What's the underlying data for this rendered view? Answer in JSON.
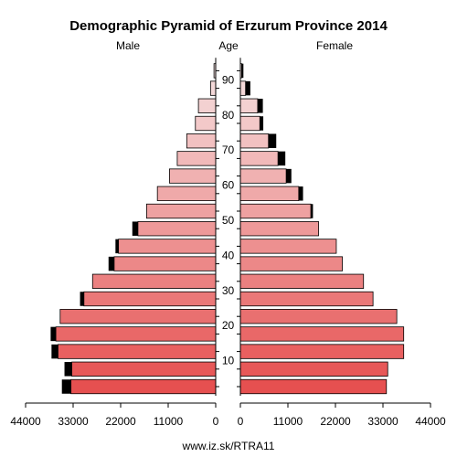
{
  "chart_data": {
    "type": "bar",
    "title": "Demographic Pyramid of Erzurum Province 2014",
    "left_label": "Male",
    "center_label": "Age",
    "right_label": "Female",
    "source": "www.iz.sk/RTRA11",
    "xlim": [
      0,
      44000
    ],
    "x_ticks": [
      44000,
      33000,
      22000,
      11000,
      0
    ],
    "x_ticks_right": [
      0,
      11000,
      22000,
      33000,
      44000
    ],
    "age_ticks": [
      "10",
      "20",
      "30",
      "40",
      "50",
      "60",
      "70",
      "80",
      "90"
    ],
    "age_groups": [
      "0-4",
      "5-9",
      "10-14",
      "15-19",
      "20-24",
      "25-29",
      "30-34",
      "35-39",
      "40-44",
      "45-49",
      "50-54",
      "55-59",
      "60-64",
      "65-69",
      "70-74",
      "75-79",
      "80-84",
      "85-89",
      "90+"
    ],
    "series": [
      {
        "name": "Male",
        "values": [
          33500,
          33300,
          36500,
          37000,
          36000,
          30500,
          28500,
          23500,
          22500,
          18000,
          16000,
          13500,
          10700,
          8900,
          6700,
          4700,
          4000,
          1200,
          400
        ],
        "excess": [
          2100,
          1700,
          1500,
          1200,
          0,
          900,
          0,
          1300,
          700,
          1300,
          0,
          0,
          0,
          0,
          0,
          0,
          0,
          0,
          0
        ]
      },
      {
        "name": "Female",
        "values": [
          33800,
          34100,
          37800,
          37800,
          36200,
          30700,
          28500,
          23600,
          22200,
          18100,
          16300,
          13500,
          10600,
          8700,
          6500,
          4500,
          4000,
          1200,
          300
        ],
        "excess": [
          0,
          0,
          0,
          0,
          0,
          0,
          0,
          0,
          0,
          0,
          500,
          1000,
          1200,
          1700,
          1800,
          800,
          1200,
          1100,
          400
        ]
      }
    ]
  }
}
